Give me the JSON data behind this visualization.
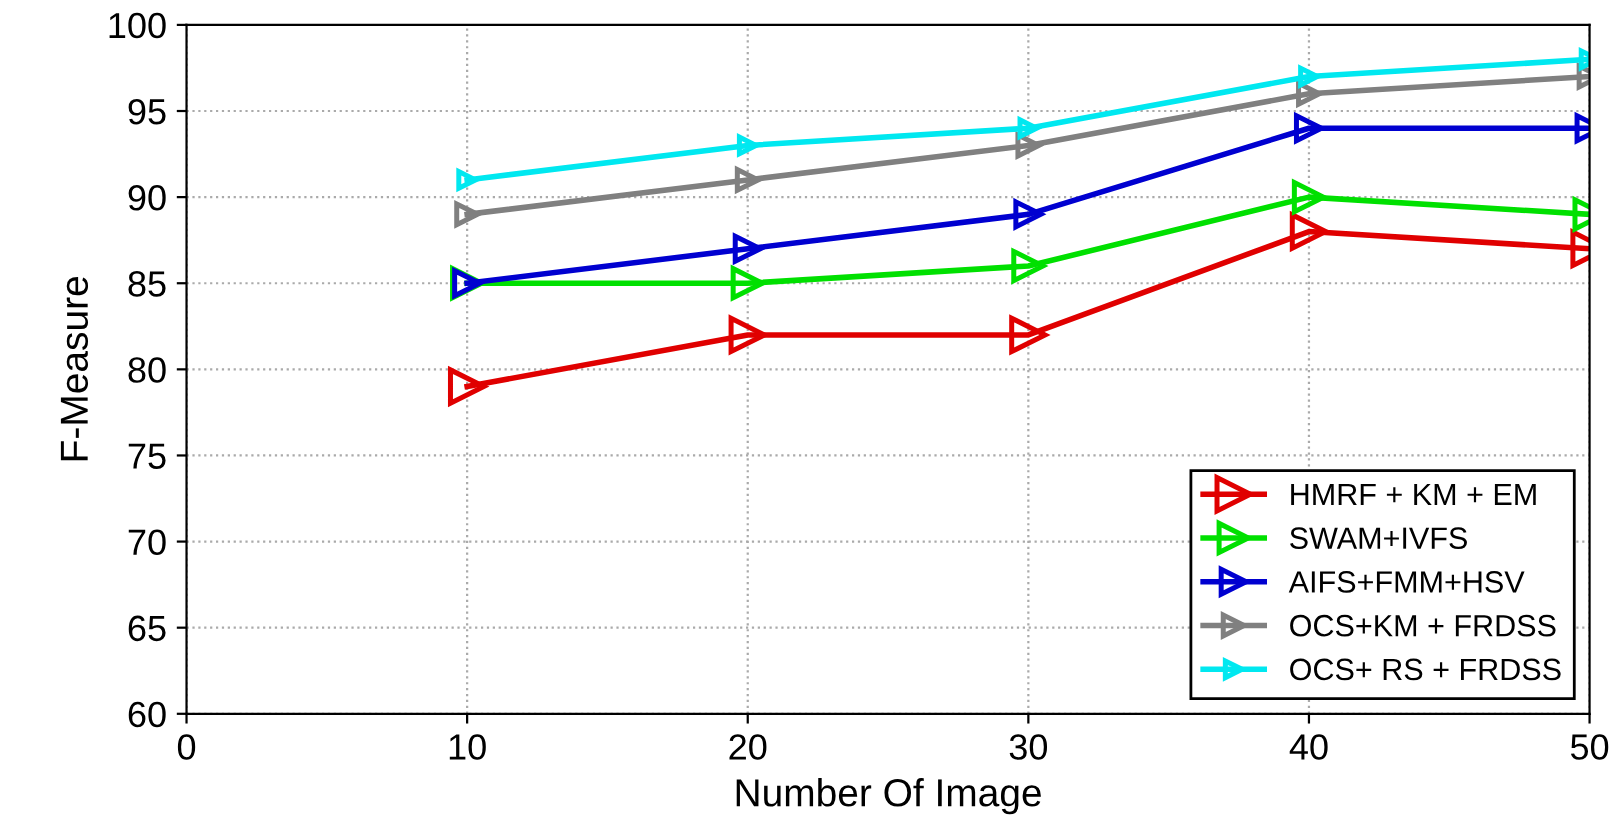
{
  "chart_data": {
    "type": "line",
    "xlabel": "Number Of Image",
    "ylabel": "F-Measure",
    "x": [
      10,
      20,
      30,
      40,
      50
    ],
    "series": [
      {
        "name": "HMRF + KM + EM",
        "color": "#e00000",
        "values": [
          79,
          82,
          82,
          88,
          87
        ]
      },
      {
        "name": "SWAM+IVFS",
        "color": "#00e000",
        "values": [
          85,
          85,
          86,
          90,
          89
        ]
      },
      {
        "name": "AIFS+FMM+HSV",
        "color": "#0000d0",
        "values": [
          85,
          87,
          89,
          94,
          94
        ]
      },
      {
        "name": "OCS+KM + FRDSS",
        "color": "#808080",
        "values": [
          89,
          91,
          93,
          96,
          97
        ]
      },
      {
        "name": "OCS+ RS + FRDSS",
        "color": "#00e8f0",
        "values": [
          91,
          93,
          94,
          97,
          98
        ]
      }
    ],
    "xlim": [
      0,
      50
    ],
    "xticks": [
      0,
      10,
      20,
      30,
      40,
      50
    ],
    "ylim": [
      60,
      100
    ],
    "yticks": [
      60,
      65,
      70,
      75,
      80,
      85,
      90,
      95,
      100
    ],
    "grid": true,
    "legend": "bottom right",
    "marker": "triangle",
    "line_style": "solid"
  }
}
